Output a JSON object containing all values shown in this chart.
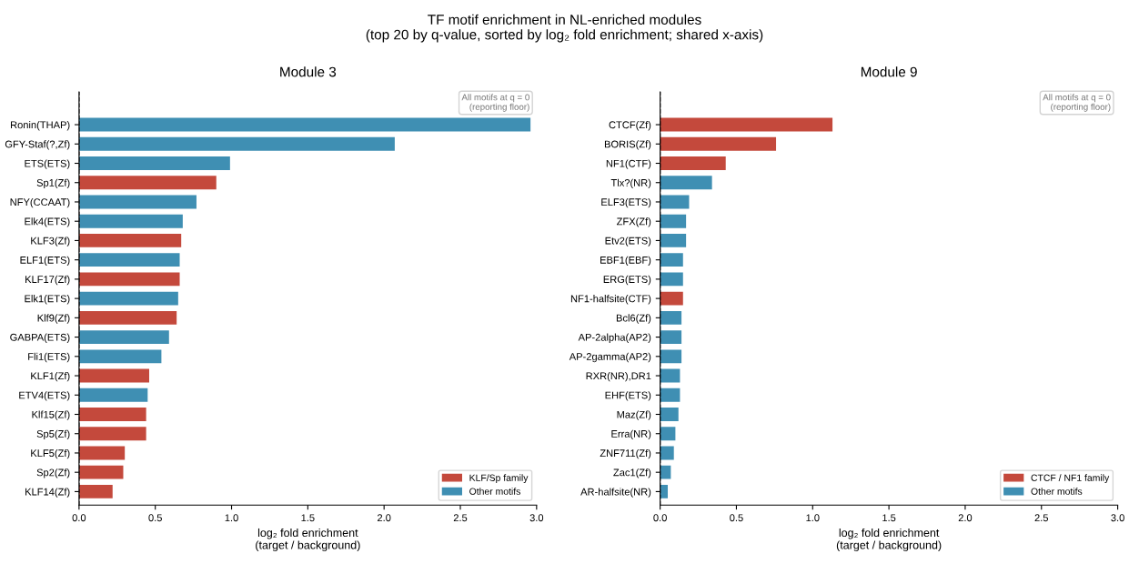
{
  "chart_data": [
    {
      "type": "bar",
      "orientation": "horizontal",
      "subtitle": "TF motif enrichment in NL-enriched modules\n(top 20 by q-value, sorted by log₂ fold enrichment; shared x-axis)",
      "title": "Module 3",
      "xlabel": "log₂ fold enrichment\n(target / background)",
      "categories": [
        "Ronin(THAP)",
        "GFY-Staf(?,Zf)",
        "ETS(ETS)",
        "Sp1(Zf)",
        "NFY(CCAAT)",
        "Elk4(ETS)",
        "KLF3(Zf)",
        "ELF1(ETS)",
        "KLF17(Zf)",
        "Elk1(ETS)",
        "Klf9(Zf)",
        "GABPA(ETS)",
        "Fli1(ETS)",
        "KLF1(Zf)",
        "ETV4(ETS)",
        "Klf15(Zf)",
        "Sp5(Zf)",
        "KLF5(Zf)",
        "Sp2(Zf)",
        "KLF14(Zf)"
      ],
      "series": [
        {
          "name": "KLF/Sp family",
          "color": "#c4493c",
          "values": [
            null,
            null,
            null,
            0.9,
            null,
            null,
            0.67,
            null,
            0.66,
            null,
            0.64,
            null,
            null,
            0.46,
            null,
            0.44,
            0.44,
            0.3,
            0.29,
            0.22
          ]
        },
        {
          "name": "Other motifs",
          "color": "#3f8fb3",
          "values": [
            2.96,
            2.07,
            0.99,
            null,
            0.77,
            0.68,
            null,
            0.66,
            null,
            0.65,
            null,
            0.59,
            0.54,
            null,
            0.45,
            null,
            null,
            null,
            null,
            null
          ]
        }
      ],
      "xlim": [
        0,
        3.0
      ],
      "xticks": [
        {
          "value": 0,
          "label": "0.0"
        },
        0.5,
        {
          "value": 1,
          "label": "1.0"
        },
        1.5,
        {
          "value": 2,
          "label": "2.0"
        },
        2.5,
        {
          "value": 3,
          "label": "3.0"
        }
      ],
      "ref_lines": [
        {
          "axis": "x",
          "value": 0,
          "label": null,
          "color": "#000000",
          "line_style": "dashed"
        }
      ],
      "annotations": [
        "All motifs at q = 0\n(reporting floor)"
      ],
      "legend": "lower right",
      "grid": false
    },
    {
      "type": "bar",
      "orientation": "horizontal",
      "title": "Module 9",
      "xlabel": "log₂ fold enrichment\n(target / background)",
      "categories": [
        "CTCF(Zf)",
        "BORIS(Zf)",
        "NF1(CTF)",
        "Tlx?(NR)",
        "ELF3(ETS)",
        "ZFX(Zf)",
        "Etv2(ETS)",
        "EBF1(EBF)",
        "ERG(ETS)",
        "NF1-halfsite(CTF)",
        "Bcl6(Zf)",
        "AP-2alpha(AP2)",
        "AP-2gamma(AP2)",
        "RXR(NR),DR1",
        "EHF(ETS)",
        "Maz(Zf)",
        "Erra(NR)",
        "ZNF711(Zf)",
        "Zac1(Zf)",
        "AR-halfsite(NR)"
      ],
      "series": [
        {
          "name": "CTCF / NF1 family",
          "color": "#c4493c",
          "values": [
            1.13,
            0.76,
            0.43,
            null,
            null,
            null,
            null,
            null,
            null,
            0.15,
            null,
            null,
            null,
            null,
            null,
            null,
            null,
            null,
            null,
            null
          ]
        },
        {
          "name": "Other motifs",
          "color": "#3f8fb3",
          "values": [
            null,
            null,
            null,
            0.34,
            0.19,
            0.17,
            0.17,
            0.15,
            0.15,
            null,
            0.14,
            0.14,
            0.14,
            0.13,
            0.13,
            0.12,
            0.1,
            0.09,
            0.07,
            0.05
          ]
        }
      ],
      "xlim": [
        0,
        3.0
      ],
      "xticks": [
        {
          "value": 0,
          "label": "0.0"
        },
        0.5,
        {
          "value": 1,
          "label": "1.0"
        },
        1.5,
        {
          "value": 2,
          "label": "2.0"
        },
        2.5,
        {
          "value": 3,
          "label": "3.0"
        }
      ],
      "ref_lines": [
        {
          "axis": "x",
          "value": 0,
          "label": null,
          "color": "#000000",
          "line_style": "dashed"
        }
      ],
      "annotations": [
        "All motifs at q = 0\n(reporting floor)"
      ],
      "legend": "lower right",
      "grid": false
    }
  ]
}
